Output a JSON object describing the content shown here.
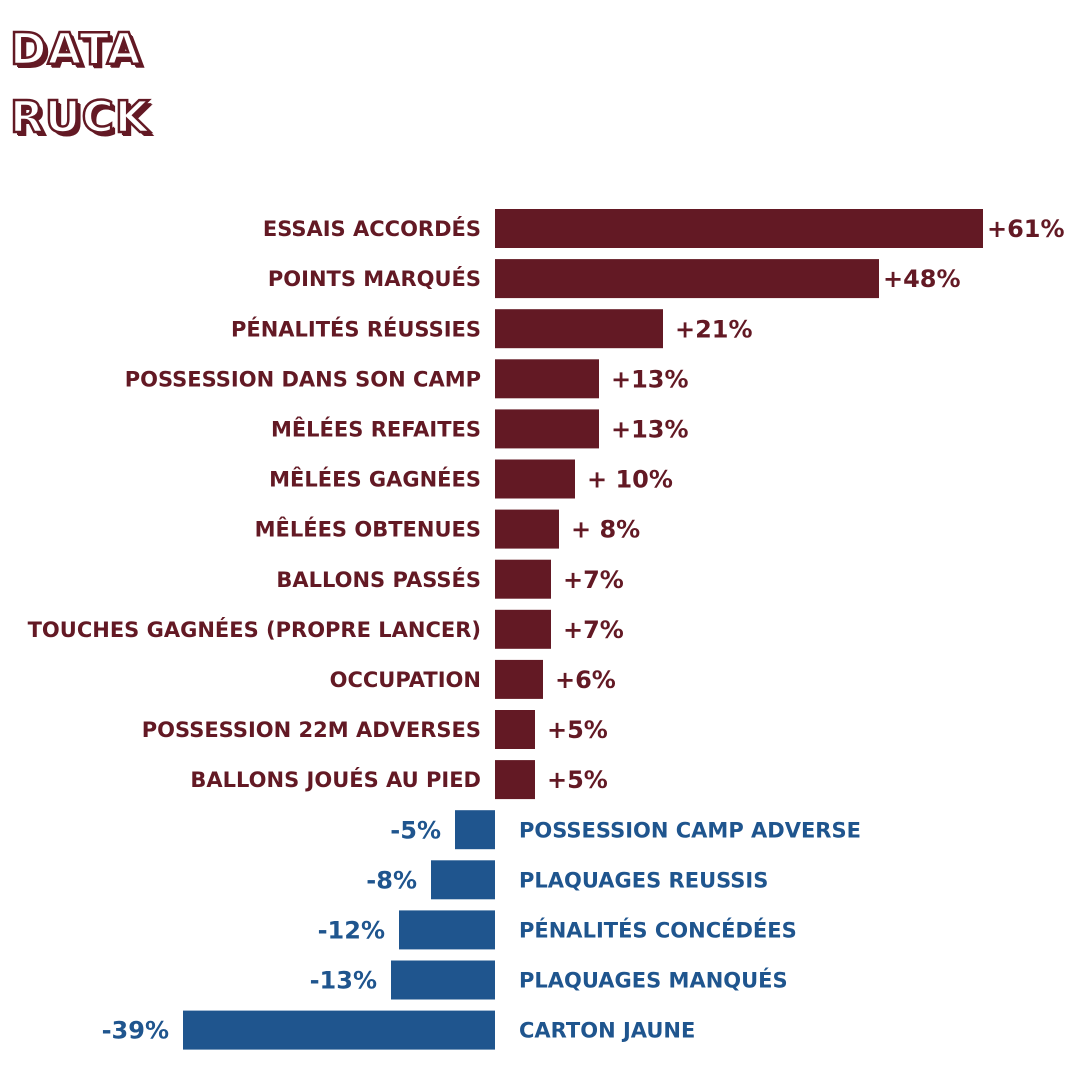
{
  "logo": {
    "line1": "DATA",
    "line2": "RUCK"
  },
  "colors": {
    "positive": "#631924",
    "negative": "#1f558e",
    "background": "#ffffff"
  },
  "chart_data": {
    "type": "bar",
    "orientation": "horizontal",
    "title": "",
    "xlabel": "",
    "ylabel": "",
    "unit": "%",
    "grid": false,
    "legend": "none",
    "xlim": [
      -39,
      61
    ],
    "categories": [
      "ESSAIS ACCORDÉS",
      "POINTS MARQUÉS",
      "PÉNALITÉS RÉUSSIES",
      "POSSESSION DANS SON CAMP",
      "MÊLÉES REFAITES",
      "MÊLÉES GAGNÉES",
      "MÊLÉES OBTENUES",
      "BALLONS PASSÉS",
      "TOUCHES GAGNÉES (PROPRE LANCER)",
      "OCCUPATION",
      "POSSESSION 22M ADVERSES",
      "BALLONS JOUÉS AU PIED",
      "POSSESSION CAMP ADVERSE",
      "PLAQUAGES REUSSIS",
      "PÉNALITÉS CONCÉDÉES",
      "PLAQUAGES MANQUÉS",
      "CARTON JAUNE"
    ],
    "values": [
      61,
      48,
      21,
      13,
      13,
      10,
      8,
      7,
      7,
      6,
      5,
      5,
      -5,
      -8,
      -12,
      -13,
      -39
    ],
    "value_labels": [
      "+61%",
      "+48%",
      "+21%",
      "+13%",
      "+13%",
      "+ 10%",
      "+ 8%",
      "+7%",
      "+7%",
      "+6%",
      "+5%",
      "+5%",
      "-5%",
      "-8%",
      "-12%",
      "-13%",
      "-39%"
    ]
  }
}
